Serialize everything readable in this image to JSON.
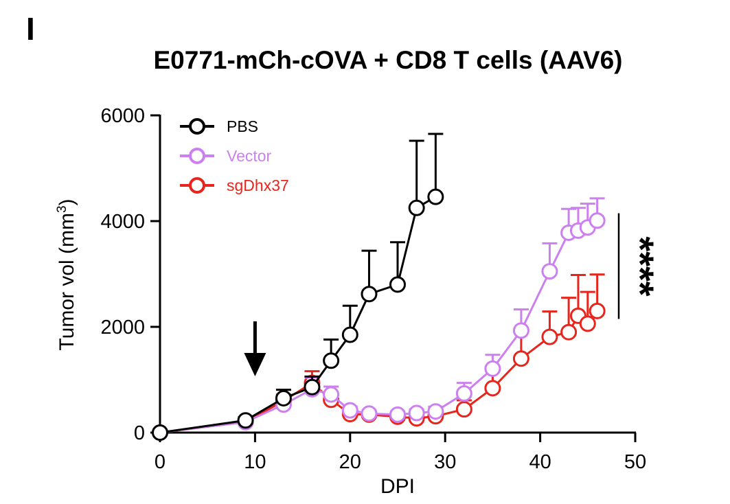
{
  "panel_label": "I",
  "chart_data": {
    "type": "line",
    "title": "E0771-mCh-cOVA + CD8 T cells (AAV6)",
    "xlabel": "DPI",
    "ylabel": "Tumor vol (mm",
    "ylabel_superscript": "3",
    "ylabel_close": ")",
    "xlim": [
      0,
      50
    ],
    "ylim": [
      0,
      6000
    ],
    "xticks": [
      0,
      10,
      20,
      30,
      40,
      50
    ],
    "yticks": [
      0,
      2000,
      4000,
      6000
    ],
    "xtick_labels": [
      "0",
      "10",
      "20",
      "30",
      "40",
      "50"
    ],
    "ytick_labels": [
      "0",
      "2000",
      "4000",
      "6000"
    ],
    "legend_position": "top-left",
    "annotation_arrow_x": 10,
    "significance": "****",
    "significance_range": [
      2150,
      4150
    ],
    "series": [
      {
        "name": "PBS",
        "color": "#000000",
        "x": [
          0,
          9,
          13,
          16,
          18,
          20,
          22,
          25,
          27,
          29
        ],
        "y": [
          0,
          230,
          650,
          860,
          1360,
          1850,
          2620,
          2800,
          4250,
          4460
        ],
        "err": [
          0,
          60,
          160,
          200,
          400,
          550,
          820,
          800,
          1270,
          1190
        ]
      },
      {
        "name": "Vector",
        "color": "#CC80F0",
        "x": [
          0,
          9,
          13,
          16,
          18,
          20,
          22,
          25,
          27,
          29,
          32,
          35,
          38,
          41,
          43,
          44,
          45,
          46
        ],
        "y": [
          0,
          200,
          530,
          820,
          720,
          420,
          360,
          340,
          370,
          400,
          740,
          1210,
          1930,
          3050,
          3780,
          3820,
          3880,
          4010
        ],
        "err": [
          0,
          40,
          110,
          220,
          150,
          70,
          60,
          60,
          70,
          90,
          200,
          260,
          400,
          530,
          450,
          430,
          450,
          420
        ]
      },
      {
        "name": "sgDhx37",
        "color": "#E8251C",
        "x": [
          0,
          9,
          13,
          16,
          18,
          20,
          22,
          25,
          27,
          29,
          32,
          35,
          38,
          41,
          43,
          44,
          45,
          46
        ],
        "y": [
          0,
          200,
          600,
          940,
          620,
          350,
          340,
          300,
          270,
          310,
          440,
          840,
          1400,
          1810,
          1900,
          2210,
          2060,
          2300
        ],
        "err": [
          0,
          40,
          120,
          220,
          110,
          60,
          60,
          50,
          50,
          70,
          170,
          320,
          500,
          480,
          650,
          770,
          600,
          690
        ]
      }
    ]
  }
}
